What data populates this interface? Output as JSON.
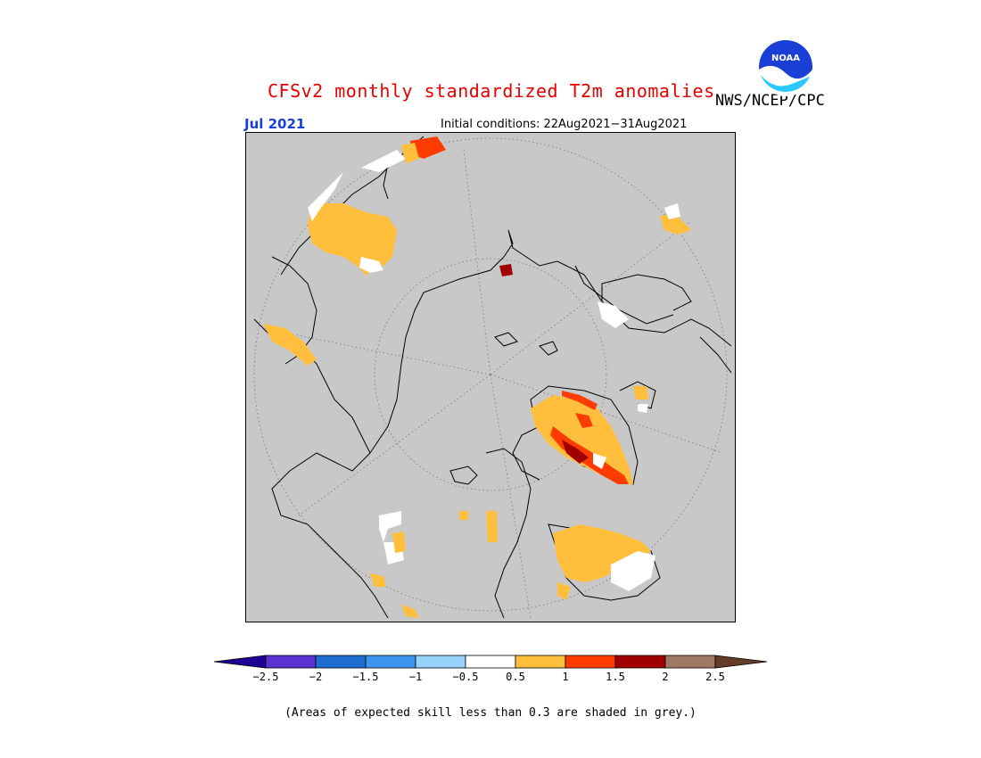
{
  "header": {
    "title": "CFSv2 monthly standardized T2m anomalies",
    "agency": "NWS/NCEP/CPC",
    "logo_text": "NOAA",
    "target_month": "Jul 2021",
    "initial_conditions": "Initial conditions: 22Aug2021−31Aug2021"
  },
  "map": {
    "projection": "north-polar-stereographic",
    "background": "#c8c8c8",
    "anomaly_categories": [
      "0.5 to 1",
      "1 to 1.5",
      "1.5 to 2",
      "< 0.5 (skillful)"
    ]
  },
  "colorbar": {
    "ticks": [
      "−2.5",
      "−2",
      "−1.5",
      "−1",
      "−0.5",
      "0.5",
      "1",
      "1.5",
      "2",
      "2.5"
    ],
    "colors": [
      "#1e0096",
      "#5a32d2",
      "#1e6ed2",
      "#3c96f0",
      "#96d2fa",
      "#ffffff",
      "#ffbe3c",
      "#ff3c00",
      "#a00000",
      "#a07864",
      "#643c28"
    ]
  },
  "footnote": "(Areas of expected skill less than 0.3 are shaded in grey.)"
}
